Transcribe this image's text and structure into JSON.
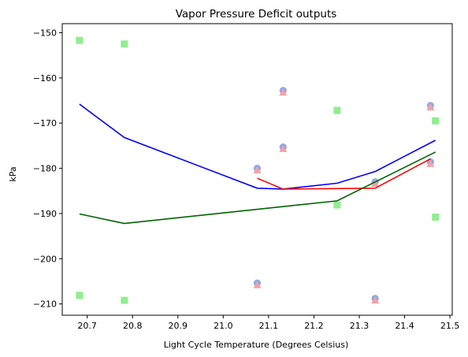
{
  "chart_data": {
    "type": "scatter",
    "title": "Vapor Pressure Deficit outputs",
    "xlabel": "Light Cycle Temperature (Degrees Celsius)",
    "ylabel": "kPa",
    "xlim": [
      20.645,
      21.505
    ],
    "ylim": [
      -212.5,
      -148.0
    ],
    "xticks": [
      20.7,
      20.8,
      20.9,
      21.0,
      21.1,
      21.2,
      21.3,
      21.4,
      21.5
    ],
    "xtick_labels": [
      "20.7",
      "20.8",
      "20.9",
      "21.0",
      "21.1",
      "21.2",
      "21.3",
      "21.4",
      "21.5"
    ],
    "yticks": [
      -150,
      -160,
      -170,
      -180,
      -190,
      -200,
      -210
    ],
    "ytick_labels": [
      "−150",
      "−160",
      "−170",
      "−180",
      "−190",
      "−200",
      "−210"
    ],
    "grid": false,
    "scatter_series": [
      {
        "marker": "circle",
        "color": "#8fa8e6",
        "points": [
          {
            "x": 21.075,
            "y": -180.0
          },
          {
            "x": 21.075,
            "y": -205.4
          },
          {
            "x": 21.132,
            "y": -162.8
          },
          {
            "x": 21.132,
            "y": -175.3
          },
          {
            "x": 21.335,
            "y": -183.0
          },
          {
            "x": 21.335,
            "y": -208.8
          },
          {
            "x": 21.457,
            "y": -166.1
          },
          {
            "x": 21.457,
            "y": -178.6
          }
        ]
      },
      {
        "marker": "triangle",
        "color": "#f4a0a6",
        "points": [
          {
            "x": 21.075,
            "y": -180.4
          },
          {
            "x": 21.075,
            "y": -205.8
          },
          {
            "x": 21.132,
            "y": -163.2
          },
          {
            "x": 21.132,
            "y": -175.7
          },
          {
            "x": 21.335,
            "y": -183.4
          },
          {
            "x": 21.335,
            "y": -209.2
          },
          {
            "x": 21.457,
            "y": -166.5
          },
          {
            "x": 21.457,
            "y": -179.0
          }
        ]
      },
      {
        "marker": "square",
        "color": "#90ee90",
        "points": [
          {
            "x": 20.683,
            "y": -151.7
          },
          {
            "x": 20.683,
            "y": -208.1
          },
          {
            "x": 20.782,
            "y": -152.5
          },
          {
            "x": 20.782,
            "y": -209.2
          },
          {
            "x": 21.251,
            "y": -167.2
          },
          {
            "x": 21.251,
            "y": -188.1
          },
          {
            "x": 21.468,
            "y": -169.5
          },
          {
            "x": 21.468,
            "y": -190.8
          }
        ]
      }
    ],
    "line_series": [
      {
        "color": "#0000ff",
        "points": [
          {
            "x": 20.683,
            "y": -165.8
          },
          {
            "x": 20.782,
            "y": -173.2
          },
          {
            "x": 21.075,
            "y": -184.4
          },
          {
            "x": 21.132,
            "y": -184.6
          },
          {
            "x": 21.251,
            "y": -183.3
          },
          {
            "x": 21.335,
            "y": -180.7
          },
          {
            "x": 21.468,
            "y": -173.8
          }
        ]
      },
      {
        "color": "#ff0000",
        "points": [
          {
            "x": 21.075,
            "y": -182.2
          },
          {
            "x": 21.132,
            "y": -184.6
          },
          {
            "x": 21.335,
            "y": -184.4
          },
          {
            "x": 21.457,
            "y": -177.9
          }
        ]
      },
      {
        "color": "#006400",
        "points": [
          {
            "x": 20.683,
            "y": -190.1
          },
          {
            "x": 20.782,
            "y": -192.2
          },
          {
            "x": 21.251,
            "y": -187.2
          },
          {
            "x": 21.468,
            "y": -176.4
          }
        ]
      }
    ]
  }
}
